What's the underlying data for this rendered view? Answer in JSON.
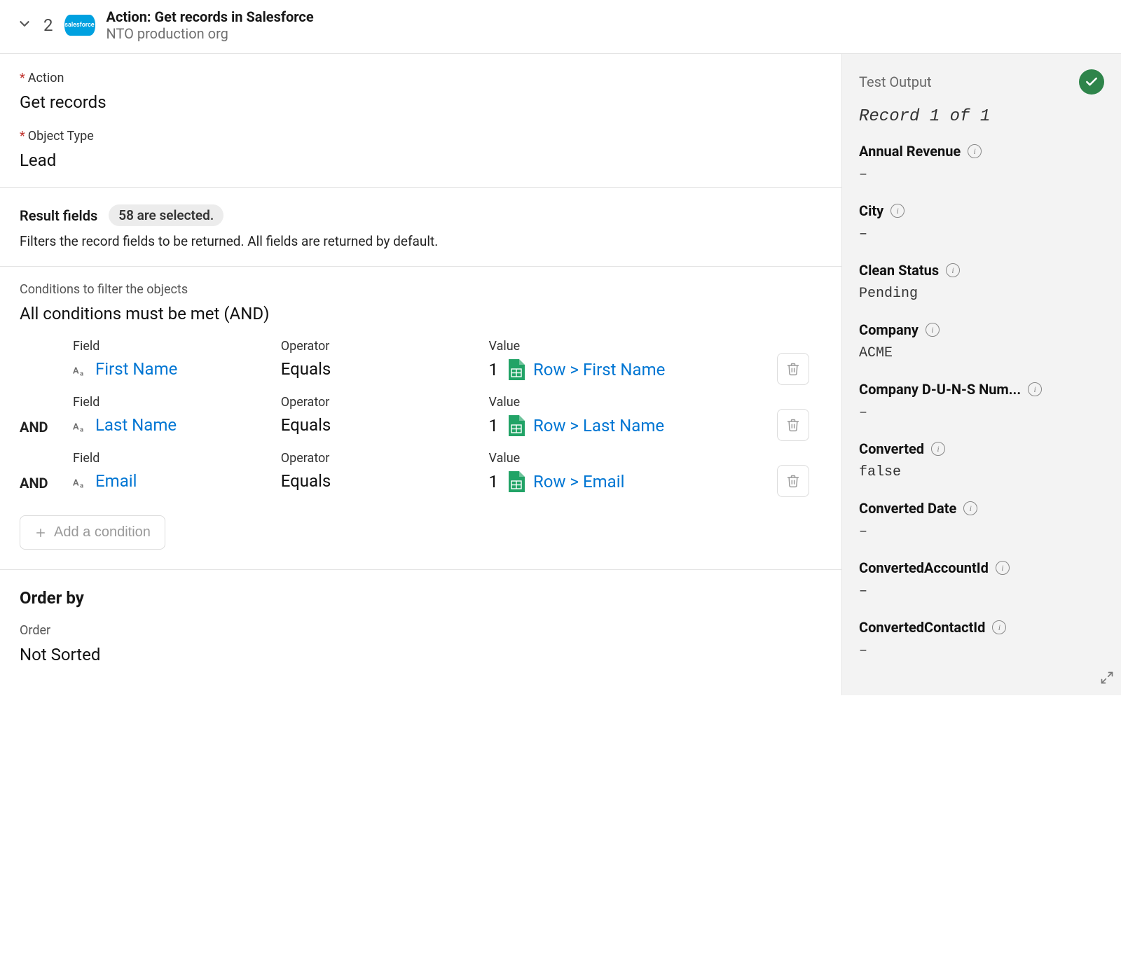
{
  "header": {
    "step_number": "2",
    "logo_text": "salesforce",
    "title": "Action: Get records in Salesforce",
    "subtitle": "NTO production org"
  },
  "main": {
    "action_label": "Action",
    "action_value": "Get records",
    "object_type_label": "Object Type",
    "object_type_value": "Lead",
    "result_fields_label": "Result fields",
    "result_fields_pill": "58 are selected.",
    "result_fields_helper": "Filters the record fields to be returned. All fields are returned by default.",
    "conditions_label": "Conditions to filter the objects",
    "conditions_value": "All conditions must be met (AND)",
    "col_field": "Field",
    "col_operator": "Operator",
    "col_value": "Value",
    "and_label": "AND",
    "conditions": [
      {
        "field": "First Name",
        "operator": "Equals",
        "value_num": "1",
        "value_ref": "Row > First Name"
      },
      {
        "field": "Last Name",
        "operator": "Equals",
        "value_num": "1",
        "value_ref": "Row > Last Name"
      },
      {
        "field": "Email",
        "operator": "Equals",
        "value_num": "1",
        "value_ref": "Row > Email"
      }
    ],
    "add_condition_label": "Add a condition",
    "orderby_title": "Order by",
    "order_label": "Order",
    "order_value": "Not Sorted"
  },
  "side": {
    "title": "Test Output",
    "record_count": "Record 1 of 1",
    "fields": [
      {
        "label": "Annual Revenue",
        "value": "–"
      },
      {
        "label": "City",
        "value": "–"
      },
      {
        "label": "Clean Status",
        "value": "Pending"
      },
      {
        "label": "Company",
        "value": "ACME"
      },
      {
        "label": "Company D-U-N-S Num...",
        "value": "–"
      },
      {
        "label": "Converted",
        "value": "false"
      },
      {
        "label": "Converted Date",
        "value": "–"
      },
      {
        "label": "ConvertedAccountId",
        "value": "–"
      },
      {
        "label": "ConvertedContactId",
        "value": "–"
      }
    ]
  },
  "colors": {
    "link": "#0176d3",
    "sheet_green": "#21a366",
    "success_green": "#2e844a",
    "sf_blue": "#00a1e0",
    "border": "#e4e4e4",
    "side_bg": "#f3f3f3"
  }
}
